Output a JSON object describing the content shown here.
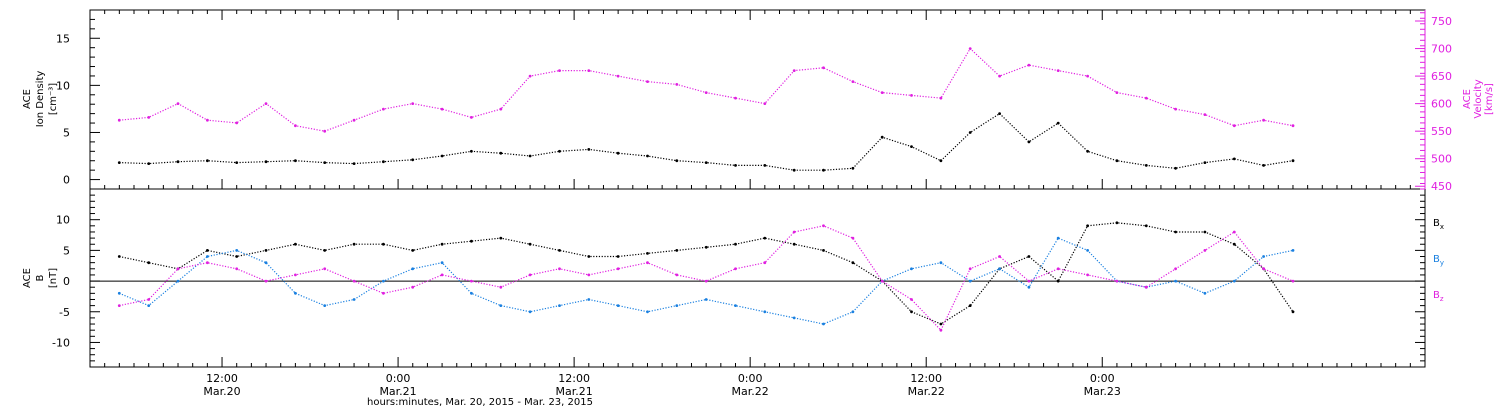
{
  "chart_data": [
    {
      "type": "scatter",
      "panel": "top",
      "ylabel": [
        "ACE",
        "Ion Density",
        "[cm⁻³]"
      ],
      "ylabel_right": [
        "ACE",
        "Velocity",
        "[km/s]"
      ],
      "ylim": [
        -1,
        18
      ],
      "y_ticks": [
        0,
        5,
        10,
        15
      ],
      "ylim_right": [
        445,
        770
      ],
      "y_ticks_right": [
        450,
        500,
        550,
        600,
        650,
        700,
        750
      ],
      "series": [
        {
          "name": "Ion Density",
          "axis": "left",
          "color": "#000000",
          "x_hours": [
            2,
            4,
            6,
            8,
            10,
            12,
            14,
            16,
            18,
            20,
            22,
            24,
            26,
            28,
            30,
            32,
            34,
            36,
            38,
            40,
            42,
            44,
            46,
            48,
            50,
            52,
            54,
            56,
            58,
            60,
            62,
            64,
            66,
            68,
            70,
            72,
            74,
            76,
            78,
            80,
            82
          ],
          "values": [
            1.8,
            1.7,
            1.9,
            2.0,
            1.8,
            1.9,
            2.0,
            1.8,
            1.7,
            1.9,
            2.1,
            2.5,
            3.0,
            2.8,
            2.5,
            3.0,
            3.2,
            2.8,
            2.5,
            2.0,
            1.8,
            1.5,
            1.5,
            1.0,
            1.0,
            1.2,
            4.5,
            3.5,
            2.0,
            5.0,
            7.0,
            4.0,
            6.0,
            3.0,
            2.0,
            1.5,
            1.2,
            1.8,
            2.2,
            1.5,
            2.0
          ]
        },
        {
          "name": "Velocity",
          "axis": "right",
          "color": "#e020e0",
          "x_hours": [
            2,
            4,
            6,
            8,
            10,
            12,
            14,
            16,
            18,
            20,
            22,
            24,
            26,
            28,
            30,
            32,
            34,
            36,
            38,
            40,
            42,
            44,
            46,
            48,
            50,
            52,
            54,
            56,
            58,
            60,
            62,
            64,
            66,
            68,
            70,
            72,
            74,
            76,
            78,
            80,
            82
          ],
          "values": [
            570,
            575,
            600,
            570,
            565,
            600,
            560,
            550,
            570,
            590,
            600,
            590,
            575,
            590,
            650,
            660,
            660,
            650,
            640,
            635,
            620,
            610,
            600,
            660,
            665,
            640,
            620,
            615,
            610,
            700,
            650,
            670,
            660,
            650,
            620,
            610,
            590,
            580,
            560,
            570,
            560
          ]
        }
      ]
    },
    {
      "type": "scatter",
      "panel": "bottom",
      "ylabel": [
        "ACE",
        "B",
        "[nT]"
      ],
      "ylim": [
        -14,
        15
      ],
      "y_ticks": [
        -10,
        -5,
        0,
        5,
        10
      ],
      "zero_line": true,
      "series": [
        {
          "name": "Bx",
          "label_main": "B",
          "label_sub": "x",
          "color": "#000000",
          "x_hours": [
            2,
            4,
            6,
            8,
            10,
            12,
            14,
            16,
            18,
            20,
            22,
            24,
            26,
            28,
            30,
            32,
            34,
            36,
            38,
            40,
            42,
            44,
            46,
            48,
            50,
            52,
            54,
            56,
            58,
            60,
            62,
            64,
            66,
            68,
            70,
            72,
            74,
            76,
            78,
            80,
            82
          ],
          "values": [
            4,
            3,
            2,
            5,
            4,
            5,
            6,
            5,
            6,
            6,
            5,
            6,
            6.5,
            7,
            6,
            5,
            4,
            4,
            4.5,
            5,
            5.5,
            6,
            7,
            6,
            5,
            3,
            0,
            -5,
            -7,
            -4,
            2,
            4,
            0,
            9,
            9.5,
            9,
            8,
            8,
            6,
            2,
            -5
          ]
        },
        {
          "name": "By",
          "label_main": "B",
          "label_sub": "y",
          "color": "#1a80e0",
          "x_hours": [
            2,
            4,
            6,
            8,
            10,
            12,
            14,
            16,
            18,
            20,
            22,
            24,
            26,
            28,
            30,
            32,
            34,
            36,
            38,
            40,
            42,
            44,
            46,
            48,
            50,
            52,
            54,
            56,
            58,
            60,
            62,
            64,
            66,
            68,
            70,
            72,
            74,
            76,
            78,
            80,
            82
          ],
          "values": [
            -2,
            -4,
            0,
            4,
            5,
            3,
            -2,
            -4,
            -3,
            0,
            2,
            3,
            -2,
            -4,
            -5,
            -4,
            -3,
            -4,
            -5,
            -4,
            -3,
            -4,
            -5,
            -6,
            -7,
            -5,
            0,
            2,
            3,
            0,
            2,
            -1,
            7,
            5,
            0,
            -1,
            0,
            -2,
            0,
            4,
            5
          ]
        },
        {
          "name": "Bz",
          "label_main": "B",
          "label_sub": "z",
          "color": "#e020e0",
          "x_hours": [
            2,
            4,
            6,
            8,
            10,
            12,
            14,
            16,
            18,
            20,
            22,
            24,
            26,
            28,
            30,
            32,
            34,
            36,
            38,
            40,
            42,
            44,
            46,
            48,
            50,
            52,
            54,
            56,
            58,
            60,
            62,
            64,
            66,
            68,
            70,
            72,
            74,
            76,
            78,
            80,
            82
          ],
          "values": [
            -4,
            -3,
            2,
            3,
            2,
            0,
            1,
            2,
            0,
            -2,
            -1,
            1,
            0,
            -1,
            1,
            2,
            1,
            2,
            3,
            1,
            0,
            2,
            3,
            8,
            9,
            7,
            0,
            -3,
            -8,
            2,
            4,
            0,
            2,
            1,
            0,
            -1,
            2,
            5,
            8,
            2,
            0
          ]
        }
      ]
    }
  ],
  "x_axis": {
    "range_hours": [
      0,
      91
    ],
    "major_ticks": [
      {
        "hour": 9,
        "time": "12:00",
        "date": "Mar.20"
      },
      {
        "hour": 21,
        "time": "0:00",
        "date": "Mar.21"
      },
      {
        "hour": 33,
        "time": "12:00",
        "date": "Mar.21"
      },
      {
        "hour": 45,
        "time": "0:00",
        "date": "Mar.22"
      },
      {
        "hour": 57,
        "time": "12:00",
        "date": "Mar.22"
      },
      {
        "hour": 69,
        "time": "0:00",
        "date": "Mar.23"
      }
    ],
    "xlabel": "hours:minutes, Mar. 20, 2015 - Mar. 23, 2015"
  }
}
